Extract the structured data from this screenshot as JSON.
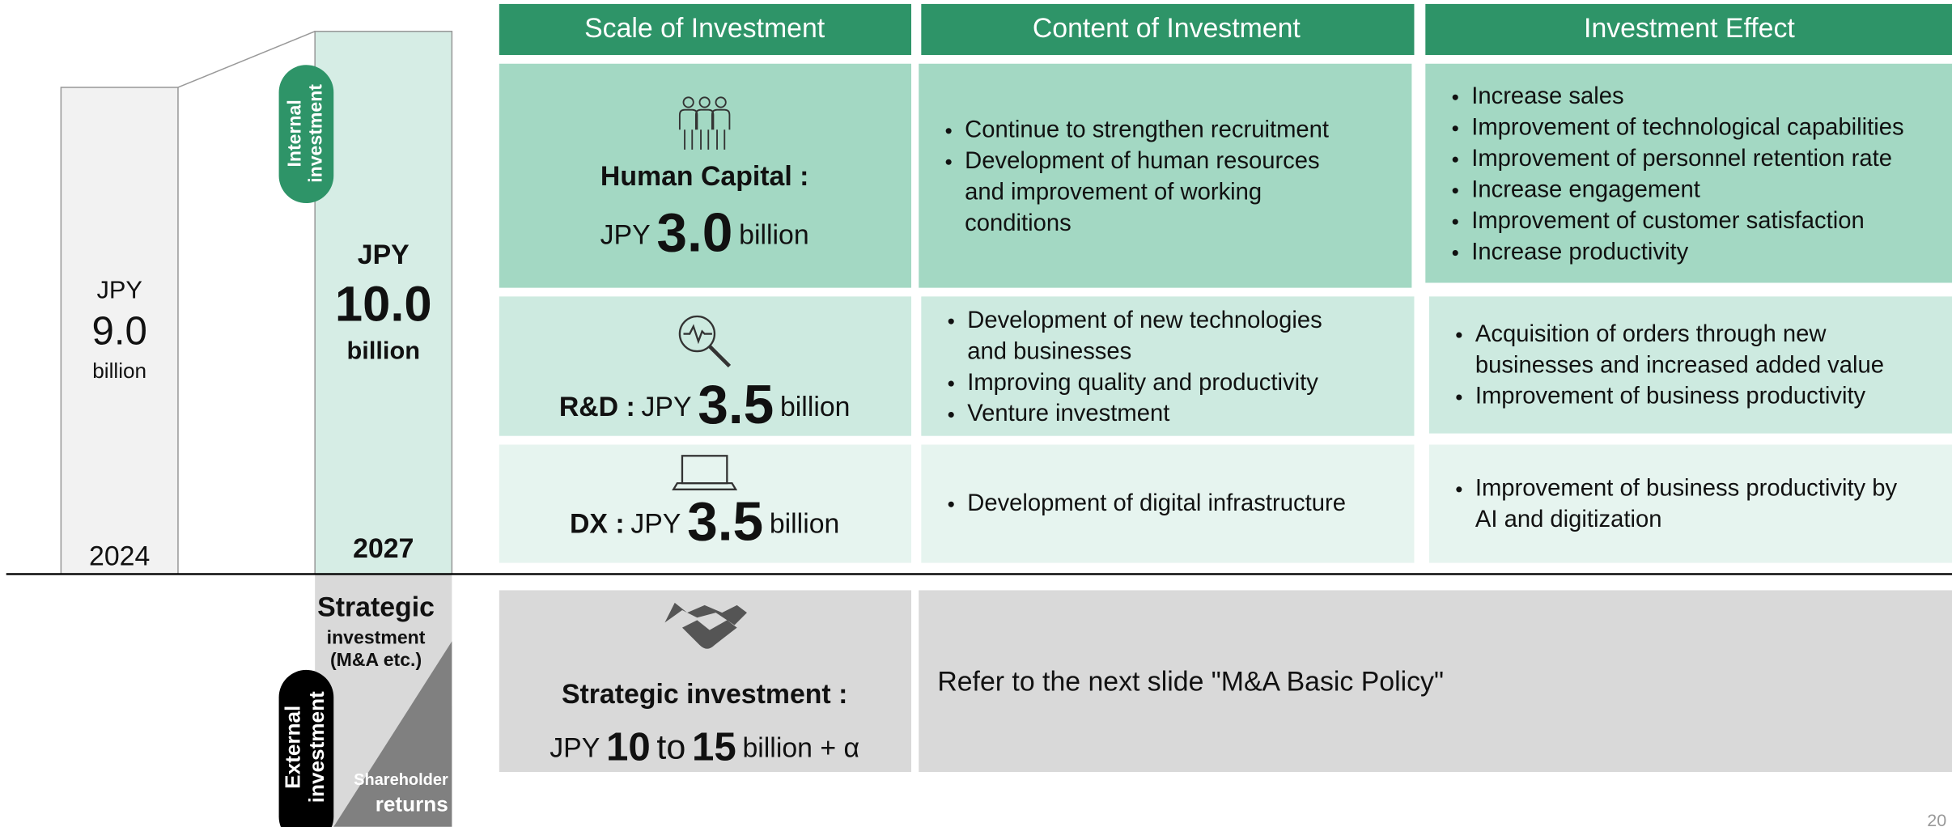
{
  "timeline": {
    "fy2024": {
      "prefix": "JPY",
      "amount": "9.0",
      "unit": "billion",
      "year": "2024"
    },
    "fy2027": {
      "prefix": "JPY",
      "amount": "10.0",
      "unit": "billion",
      "year": "2027",
      "internal_label": [
        "Internal",
        "investment"
      ]
    },
    "strategic": {
      "title": "Strategic",
      "sub": "investment",
      "note": "(M&A etc.)",
      "external_label": [
        "External",
        "investment"
      ],
      "returns": [
        "Shareholder",
        "returns"
      ]
    }
  },
  "headers": [
    "Scale of Investment",
    "Content of Investment",
    "Investment Effect"
  ],
  "rows": [
    {
      "label": "Human Capital :",
      "prefix": "JPY",
      "amount": "3.0",
      "unit": "billion",
      "content": [
        [
          "Continue to strengthen recruitment"
        ],
        [
          "Development of human resources",
          "and improvement of working",
          "conditions"
        ]
      ],
      "effect": [
        [
          "Increase sales"
        ],
        [
          "Improvement of technological capabilities"
        ],
        [
          "Improvement of personnel retention rate"
        ],
        [
          "Increase engagement"
        ],
        [
          "Improvement of customer satisfaction"
        ],
        [
          "Increase productivity"
        ]
      ]
    },
    {
      "label": "R&D :",
      "prefix": "JPY",
      "amount": "3.5",
      "unit": "billion",
      "content": [
        [
          "Development of new technologies",
          "and businesses"
        ],
        [
          "Improving quality and productivity"
        ],
        [
          "Venture investment"
        ]
      ],
      "effect": [
        [
          "Acquisition of orders through new",
          "businesses and increased added value"
        ],
        [
          "Improvement of business productivity"
        ]
      ]
    },
    {
      "label": "DX :",
      "prefix": "JPY",
      "amount": "3.5",
      "unit": "billion",
      "content": [
        [
          "Development of digital infrastructure"
        ]
      ],
      "effect": [
        [
          "Improvement of business productivity by",
          "AI and digitization"
        ]
      ]
    }
  ],
  "strategic": {
    "label": "Strategic investment :",
    "prefix": "JPY",
    "low": "10",
    "to": "to",
    "high": "15",
    "unit": "billion + α",
    "content": "Refer to the next slide \"M&A Basic Policy\""
  },
  "page_number": "20"
}
